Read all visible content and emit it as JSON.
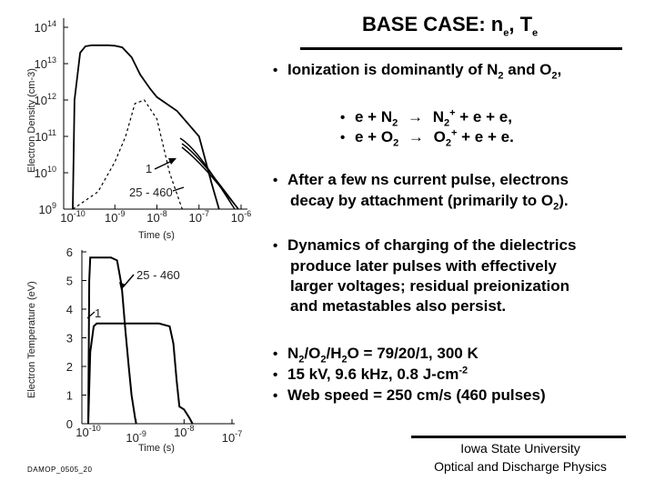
{
  "slide": {
    "title_main": "BASE CASE: n",
    "title_sub1": "e",
    "title_mid": ", T",
    "title_sub2": "e",
    "bullet1": {
      "text": "Ionization is dominantly of N",
      "s1": "2",
      "mid": " and O",
      "s2": "2",
      "end": ","
    },
    "reaction1": {
      "a": "e + N",
      "a_sub": "2",
      "arrow": "→",
      "b": " N",
      "b_sub": "2",
      "b_sup": "+",
      "c": " + e + e,"
    },
    "reaction2": {
      "a": "e + O",
      "a_sub": "2",
      "arrow": "→",
      "b": " O",
      "b_sub": "2",
      "b_sup": "+",
      "c": " + e + e."
    },
    "bullet2": {
      "line1": "After a few ns current pulse, electrons",
      "line2a": "decay by attachment (primarily to O",
      "line2_sub": "2",
      "line2b": ")."
    },
    "bullet3": {
      "lines": [
        "Dynamics of charging of the dielectrics",
        "produce later pulses with effectively",
        "larger voltages; residual preionization",
        "and metastables also persist."
      ]
    },
    "conditions": {
      "c1": {
        "a": "N",
        "s1": "2",
        "b": "/O",
        "s2": "2",
        "c": "/H",
        "s3": "2",
        "d": "O = 79/20/1, 300 K"
      },
      "c2": {
        "a": "15 kV,  9.6 kHz, 0.8 J-cm",
        "sup": "-2"
      },
      "c3": {
        "a": "Web speed = 250 cm/s (460 pulses)"
      }
    },
    "footer": {
      "line1": "Iowa State University",
      "line2": "Optical and Discharge Physics"
    },
    "slide_id": "DAMOP_0505_20"
  },
  "chart_data": [
    {
      "type": "line",
      "xlabel": "Time (s)",
      "ylabel": "Electron Density (cm-3)",
      "xscale": "log",
      "yscale": "log",
      "xlim": [
        1e-10,
        1e-06
      ],
      "ylim": [
        1000000000.0,
        100000000000000.0
      ],
      "x_ticks": [
        "10",
        "10",
        "10",
        "10",
        "10"
      ],
      "x_tick_exps": [
        "-10",
        "-9",
        "-8",
        "-7",
        "-6"
      ],
      "y_ticks": [
        "10",
        "10",
        "10",
        "10",
        "10",
        "10"
      ],
      "y_tick_exps": [
        "9",
        "10",
        "11",
        "12",
        "13",
        "14"
      ],
      "annotations": [
        "1",
        "25 - 460"
      ],
      "series": [
        {
          "style": "dashed",
          "x": [
            1e-10,
            4e-10,
            1e-09,
            1.8e-09,
            3e-09,
            5e-09,
            1e-08,
            2e-08,
            4e-08
          ],
          "y": [
            1000000000.0,
            3000000000.0,
            20000000000.0,
            100000000000.0,
            800000000000.0,
            1000000000000.0,
            300000000000.0,
            10000000000.0,
            1000000000.0
          ]
        },
        {
          "style": "solid",
          "x": [
            1e-10,
            1.1e-10,
            1.5e-10,
            2e-10,
            2.8e-10,
            4e-10,
            7e-10,
            1e-09,
            1.5e-09,
            2.5e-09,
            4e-09,
            7e-09,
            1e-08,
            3e-08,
            1e-07,
            2e-07,
            3e-07
          ],
          "y": [
            1000000000.0,
            1000000000000.0,
            20000000000000.0,
            30000000000000.0,
            32000000000000.0,
            32000000000000.0,
            32000000000000.0,
            31000000000000.0,
            28000000000000.0,
            15000000000000.0,
            5000000000000.0,
            2000000000000.0,
            1200000000000.0,
            500000000000.0,
            100000000000.0,
            5000000000.0,
            1000000000.0
          ]
        }
      ]
    },
    {
      "type": "line",
      "xlabel": "Time (s)",
      "ylabel": "Electron Temperature (eV)",
      "xscale": "log",
      "xlim": [
        1e-10,
        1e-07
      ],
      "ylim": [
        0,
        6
      ],
      "x_ticks": [
        "10",
        "10",
        "10",
        "10"
      ],
      "x_tick_exps": [
        "-10",
        "-9",
        "-8",
        "-7"
      ],
      "y_ticks": [
        "0",
        "1",
        "2",
        "3",
        "4",
        "5",
        "6"
      ],
      "annotations": [
        "25 - 460",
        "1"
      ],
      "series": [
        {
          "style": "solid",
          "x": [
            1e-10,
            1.05e-10,
            1.1e-10,
            1.8e-10,
            3e-10,
            4e-10,
            5e-10,
            6e-10,
            7e-10,
            8e-10,
            9.5e-10,
            1e-09
          ],
          "y": [
            0,
            5,
            5.8,
            5.8,
            5.8,
            5.7,
            4.8,
            3.2,
            2.0,
            1.0,
            0.2,
            0
          ]
        },
        {
          "style": "solid",
          "x": [
            1e-10,
            1.1e-10,
            1.3e-10,
            1.5e-10,
            3e-10,
            1e-09,
            3e-09,
            5e-09,
            6e-09,
            7e-09,
            8e-09,
            1e-08,
            1.3e-08,
            1.5e-08
          ],
          "y": [
            0,
            2.5,
            3.4,
            3.5,
            3.5,
            3.5,
            3.5,
            3.4,
            2.8,
            1.5,
            0.6,
            0.5,
            0.2,
            0
          ]
        }
      ]
    }
  ]
}
